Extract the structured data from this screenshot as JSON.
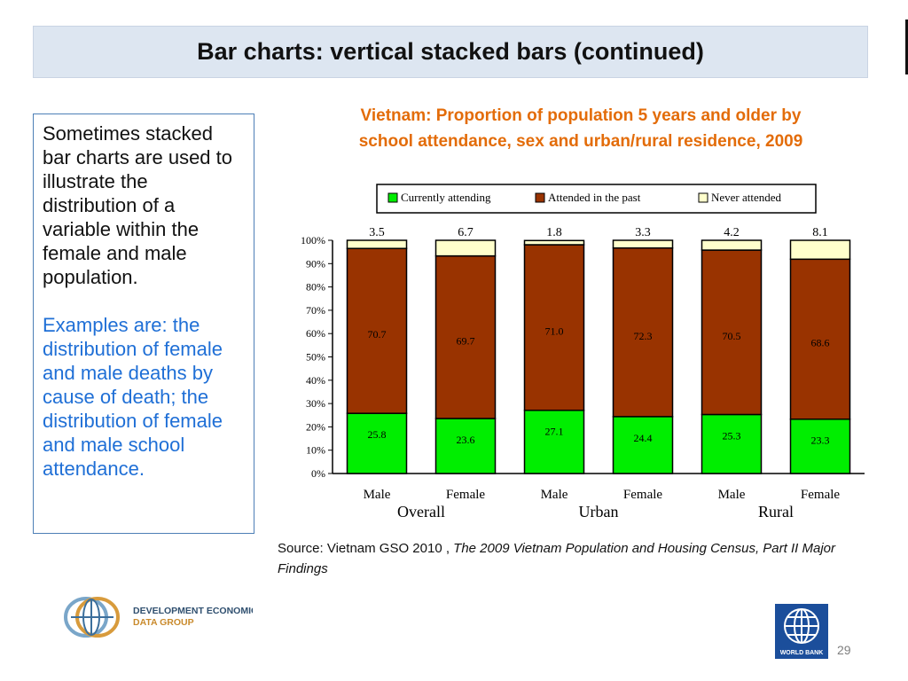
{
  "slide": {
    "title": "Bar charts: vertical stacked bars (continued)",
    "body_paragraph": "Sometimes stacked bar charts are used to illustrate the distribution of a variable within the female and male population.",
    "examples_paragraph": "Examples are: the distribution of female and male deaths by cause of death; the distribution of female and male school attendance.",
    "source_prefix": "Source: Vietnam GSO 2010 , ",
    "source_italic": "The 2009 Vietnam Population and Housing Census, Part II Major Findings",
    "page_number": "29",
    "dec_logo_text": [
      "DEVELOPMENT ECONOMICS",
      "DATA GROUP"
    ],
    "wb_logo_text": "WORLD BANK",
    "accent_color": "#e36c09",
    "example_text_color": "#1f6fd6",
    "title_band_color": "#dde6f1"
  },
  "chart_data": {
    "type": "bar",
    "stacked": true,
    "title_lines": [
      "Vietnam: Proportion of population 5 years and older by",
      "school attendance, sex and urban/rural residence, 2009"
    ],
    "categories": [
      "Male",
      "Female",
      "Male",
      "Female",
      "Male",
      "Female"
    ],
    "groups": [
      "Overall",
      "Urban",
      "Rural"
    ],
    "ylim": [
      0,
      100
    ],
    "yticks": [
      "0%",
      "10%",
      "20%",
      "30%",
      "40%",
      "50%",
      "60%",
      "70%",
      "80%",
      "90%",
      "100%"
    ],
    "legend_position": "top",
    "grid": false,
    "series": [
      {
        "name": "Currently attending",
        "color": "#00ee00",
        "values": [
          25.8,
          23.6,
          27.1,
          24.4,
          25.3,
          23.3
        ],
        "labels": [
          "25.8",
          "23.6",
          "27.1",
          "24.4",
          "25.3",
          "23.3"
        ]
      },
      {
        "name": "Attended in the past",
        "color": "#993300",
        "values": [
          70.7,
          69.7,
          71.0,
          72.3,
          70.5,
          68.6
        ],
        "labels": [
          "70.7",
          "69.7",
          "71.0",
          "72.3",
          "70.5",
          "68.6"
        ]
      },
      {
        "name": "Never attended",
        "color": "#ffffcc",
        "values": [
          3.5,
          6.7,
          1.8,
          3.3,
          4.2,
          8.1
        ],
        "labels": [
          "3.5",
          "6.7",
          "1.8",
          "3.3",
          "4.2",
          "8.1"
        ]
      }
    ]
  }
}
